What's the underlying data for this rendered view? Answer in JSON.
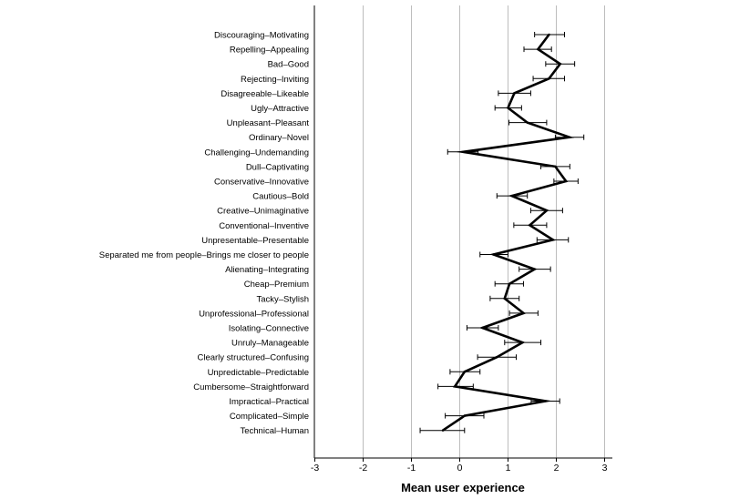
{
  "chart_data": {
    "type": "line",
    "orientation": "horizontal",
    "xlabel": "Mean user experience",
    "xlim": [
      -3,
      3
    ],
    "xticks": [
      "-3",
      "-2",
      "-1",
      "0",
      "1",
      "2",
      "3"
    ],
    "grid": "vertical",
    "categories": [
      "Discouraging–Motivating",
      "Repelling–Appealing",
      "Bad–Good",
      "Rejecting–Inviting",
      "Disagreeable–Likeable",
      "Ugly–Attractive",
      "Unpleasant–Pleasant",
      "Ordinary–Novel",
      "Challenging–Undemanding",
      "Dull–Captivating",
      "Conservative–Innovative",
      "Cautious–Bold",
      "Creative–Unimaginative",
      "Conventional–Inventive",
      "Unpresentable–Presentable",
      "Separated me from people–Brings me closer to people",
      "Alienating–Integrating",
      "Cheap–Premium",
      "Tacky–Stylish",
      "Unprofessional–Professional",
      "Isolating–Connective",
      "Unruly–Manageable",
      "Clearly structured–Confusing",
      "Unpredictable–Predictable",
      "Cumbersome–Straightforward",
      "Impractical–Practical",
      "Complicated–Simple",
      "Technical–Human"
    ],
    "values": [
      1.85,
      1.62,
      2.08,
      1.85,
      1.13,
      1.0,
      1.4,
      2.27,
      0.07,
      1.98,
      2.2,
      1.08,
      1.8,
      1.45,
      1.93,
      0.7,
      1.55,
      1.03,
      0.93,
      1.32,
      0.47,
      1.3,
      0.77,
      0.1,
      -0.1,
      1.78,
      0.1,
      -0.35
    ],
    "err_low": [
      1.55,
      1.33,
      1.78,
      1.52,
      0.8,
      0.73,
      1.02,
      1.98,
      -0.25,
      1.68,
      1.95,
      0.77,
      1.47,
      1.12,
      1.6,
      0.42,
      1.23,
      0.73,
      0.63,
      1.03,
      0.15,
      0.93,
      0.37,
      -0.2,
      -0.45,
      1.48,
      -0.3,
      -0.82
    ],
    "err_high": [
      2.17,
      1.9,
      2.38,
      2.17,
      1.47,
      1.28,
      1.8,
      2.57,
      0.38,
      2.28,
      2.45,
      1.4,
      2.13,
      1.8,
      2.25,
      1.0,
      1.88,
      1.32,
      1.23,
      1.62,
      0.8,
      1.68,
      1.17,
      0.42,
      0.28,
      2.07,
      0.5,
      0.1
    ],
    "line_color": "#000000",
    "grid_color": "#bdbdbd"
  }
}
